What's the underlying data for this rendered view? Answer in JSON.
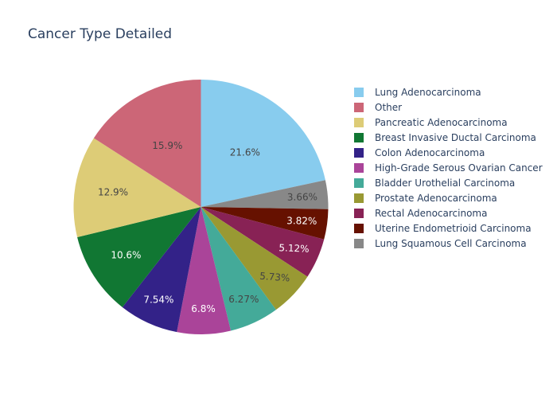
{
  "chart_data": {
    "type": "pie",
    "title": "Cancer Type Detailed",
    "legend_position": "right",
    "direction": "clockwise",
    "start_angle": "top",
    "series": [
      {
        "name": "Lung Adenocarcinoma",
        "value": 21.6,
        "label": "21.6%",
        "color": "#88CCEE",
        "label_color": "#444444"
      },
      {
        "name": "Lung Squamous Cell Carcinoma",
        "value": 3.66,
        "label": "3.66%",
        "color": "#888888",
        "label_color": "#444444"
      },
      {
        "name": "Uterine Endometrioid Carcinoma",
        "value": 3.82,
        "label": "3.82%",
        "color": "#661100",
        "label_color": "#ffffff"
      },
      {
        "name": "Rectal Adenocarcinoma",
        "value": 5.12,
        "label": "5.12%",
        "color": "#882255",
        "label_color": "#ffffff"
      },
      {
        "name": "Prostate Adenocarcinoma",
        "value": 5.73,
        "label": "5.73%",
        "color": "#999933",
        "label_color": "#444444"
      },
      {
        "name": "Bladder Urothelial Carcinoma",
        "value": 6.27,
        "label": "6.27%",
        "color": "#44AA99",
        "label_color": "#444444"
      },
      {
        "name": "High-Grade Serous Ovarian Cancer",
        "value": 6.8,
        "label": "6.8%",
        "color": "#AA4499",
        "label_color": "#ffffff"
      },
      {
        "name": "Colon Adenocarcinoma",
        "value": 7.54,
        "label": "7.54%",
        "color": "#332288",
        "label_color": "#ffffff"
      },
      {
        "name": "Breast Invasive Ductal Carcinoma",
        "value": 10.6,
        "label": "10.6%",
        "color": "#117733",
        "label_color": "#ffffff"
      },
      {
        "name": "Pancreatic Adenocarcinoma",
        "value": 12.9,
        "label": "12.9%",
        "color": "#DDCC77",
        "label_color": "#444444"
      },
      {
        "name": "Other",
        "value": 15.9,
        "label": "15.9%",
        "color": "#CC6677",
        "label_color": "#444444"
      }
    ],
    "legend_order": [
      "Lung Adenocarcinoma",
      "Other",
      "Pancreatic Adenocarcinoma",
      "Breast Invasive Ductal Carcinoma",
      "Colon Adenocarcinoma",
      "High-Grade Serous Ovarian Cancer",
      "Bladder Urothelial Carcinoma",
      "Prostate Adenocarcinoma",
      "Rectal Adenocarcinoma",
      "Uterine Endometrioid Carcinoma",
      "Lung Squamous Cell Carcinoma"
    ]
  }
}
